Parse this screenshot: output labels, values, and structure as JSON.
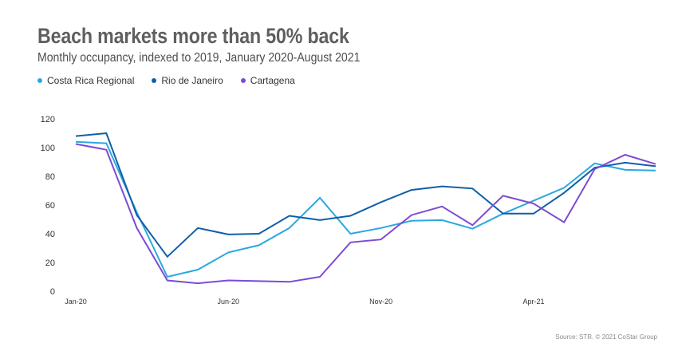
{
  "header": {
    "title": "Beach markets more than 50% back",
    "subtitle": "Monthly occupancy, indexed to 2019, January 2020-August 2021"
  },
  "footer": {
    "source": "Source: STR. © 2021 CoStar Group"
  },
  "chart_data": {
    "type": "line",
    "title": "Beach markets more than 50% back",
    "subtitle": "Monthly occupancy, indexed to 2019, January 2020-August 2021",
    "xlabel": "",
    "ylabel": "",
    "x": [
      "Jan-20",
      "Feb-20",
      "Mar-20",
      "Apr-20",
      "May-20",
      "Jun-20",
      "Jul-20",
      "Aug-20",
      "Sep-20",
      "Oct-20",
      "Nov-20",
      "Dec-20",
      "Jan-21",
      "Feb-21",
      "Mar-21",
      "Apr-21",
      "May-21",
      "Jun-21",
      "Jul-21",
      "Aug-21"
    ],
    "x_tick_labels": [
      "Jan-20",
      "Jun-20",
      "Nov-20",
      "Apr-21"
    ],
    "ylim": [
      0,
      120
    ],
    "y_ticks": [
      0,
      20,
      40,
      60,
      80,
      100,
      120
    ],
    "grid": false,
    "legend_position": "top-left",
    "series": [
      {
        "name": "Costa Rica Regional",
        "color": "#2ba8e0",
        "values": [
          104,
          103,
          55,
          10,
          15,
          27,
          32,
          44,
          65,
          40,
          44,
          49,
          49.5,
          43.5,
          54,
          63,
          72,
          89,
          84.5,
          84
        ]
      },
      {
        "name": "Rio de Janeiro",
        "color": "#0f5fa8",
        "values": [
          108,
          110,
          53,
          24,
          44,
          39.5,
          40,
          52.5,
          49.5,
          52.5,
          62,
          70.5,
          73,
          71.5,
          54,
          54,
          68.5,
          86,
          89.5,
          87
        ]
      },
      {
        "name": "Cartagena",
        "color": "#7d4bd4",
        "values": [
          102.5,
          98.5,
          44,
          7.5,
          5.5,
          7.5,
          7,
          6.5,
          10,
          34,
          36,
          53,
          59,
          46,
          66.5,
          61,
          48,
          85,
          95,
          88.5
        ]
      }
    ]
  }
}
